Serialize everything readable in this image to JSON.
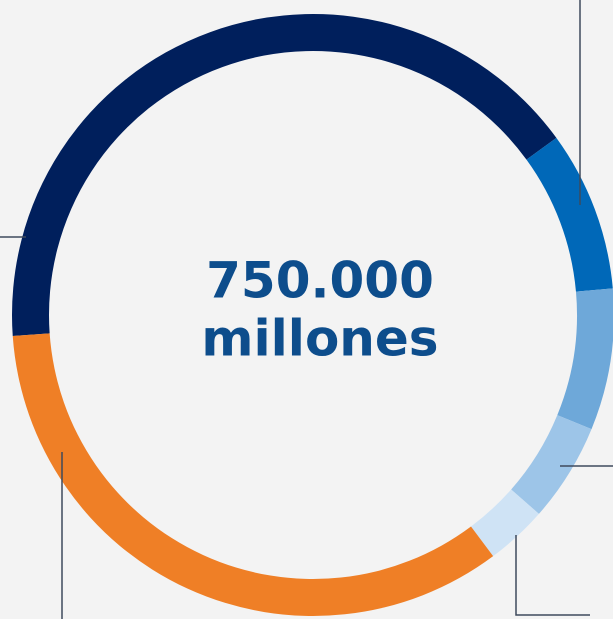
{
  "chart_data": {
    "type": "donut",
    "center_label": [
      "750.000",
      "millones"
    ],
    "values": [
      41.1,
      8.6,
      7.6,
      5.3,
      3.3,
      34.1
    ],
    "colors": [
      "#001f5c",
      "#0068b8",
      "#6ea8d9",
      "#9dc5e8",
      "#cfe3f5",
      "#ef7f26"
    ],
    "start_angle": 266
  }
}
